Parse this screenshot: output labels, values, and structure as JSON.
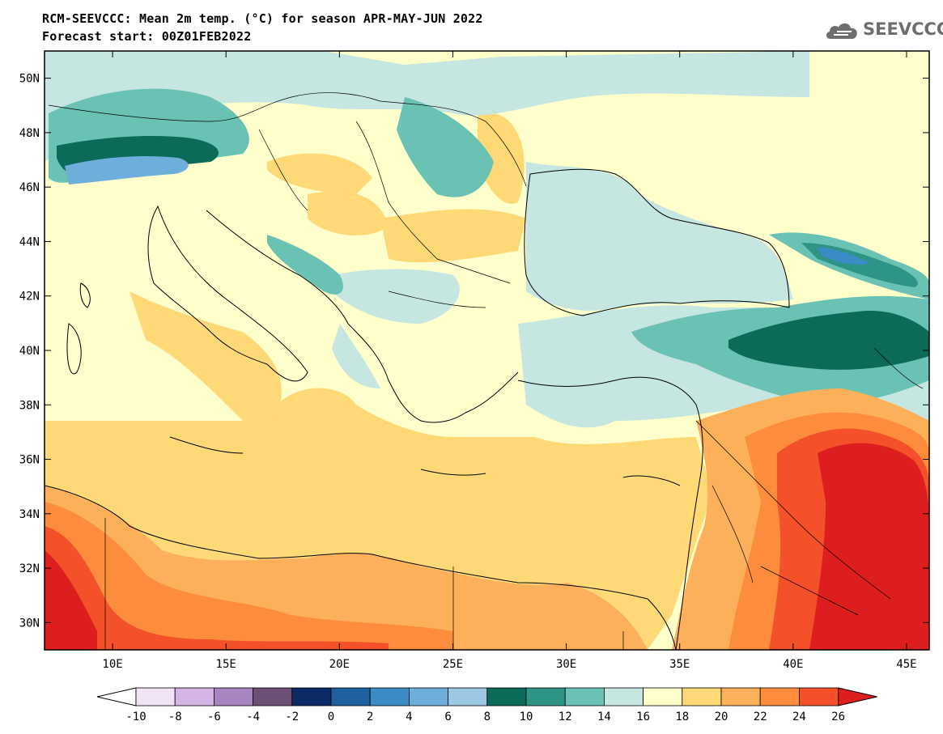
{
  "header": {
    "title_line1": "RCM-SEEVCCC: Mean 2m temp. (°C) for season APR-MAY-JUN 2022",
    "title_line2": "Forecast start: 00Z01FEB2022",
    "logo_text": "SEEVCCC",
    "logo_icon": "cloud-icon"
  },
  "map": {
    "lon_range": [
      7,
      46
    ],
    "lat_range": [
      29,
      51
    ],
    "lon_ticks": [
      {
        "value": 10,
        "label": "10E"
      },
      {
        "value": 15,
        "label": "15E"
      },
      {
        "value": 20,
        "label": "20E"
      },
      {
        "value": 25,
        "label": "25E"
      },
      {
        "value": 30,
        "label": "30E"
      },
      {
        "value": 35,
        "label": "35E"
      },
      {
        "value": 40,
        "label": "40E"
      },
      {
        "value": 45,
        "label": "45E"
      }
    ],
    "lat_ticks": [
      {
        "value": 50,
        "label": "50N"
      },
      {
        "value": 48,
        "label": "48N"
      },
      {
        "value": 46,
        "label": "46N"
      },
      {
        "value": 44,
        "label": "44N"
      },
      {
        "value": 42,
        "label": "42N"
      },
      {
        "value": 40,
        "label": "40N"
      },
      {
        "value": 38,
        "label": "38N"
      },
      {
        "value": 36,
        "label": "36N"
      },
      {
        "value": 34,
        "label": "34N"
      },
      {
        "value": 32,
        "label": "32N"
      },
      {
        "value": 30,
        "label": "30N"
      }
    ]
  },
  "colorbar": {
    "labels": [
      "-10",
      "-8",
      "-6",
      "-4",
      "-2",
      "0",
      "2",
      "4",
      "6",
      "8",
      "10",
      "12",
      "14",
      "16",
      "18",
      "20",
      "22",
      "24",
      "26"
    ],
    "colors": [
      "#ffffff",
      "#efe3f5",
      "#d4b4e4",
      "#a884c0",
      "#6b4f75",
      "#0b2a66",
      "#1f60a0",
      "#3b8bc5",
      "#6eaedb",
      "#9dc8e3",
      "#0b6a58",
      "#2e9485",
      "#6ac2b4",
      "#c6e7e1",
      "#ffffcc",
      "#fed976",
      "#fdb05a",
      "#fd8d3c",
      "#f4502a",
      "#dc1e1e"
    ]
  }
}
